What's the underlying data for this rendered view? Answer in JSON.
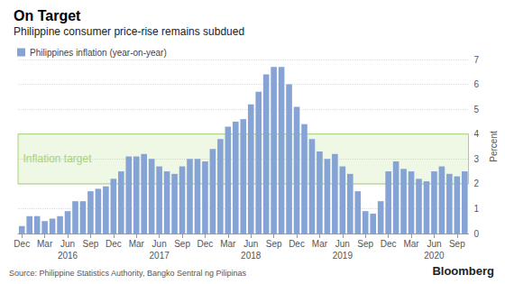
{
  "chart_data": {
    "type": "bar",
    "title": "On Target",
    "subtitle": "Philippine consumer price-rise remains subdued",
    "source": "Source: Philippine Statistics Authority, Bangko Sentral ng Pilipinas",
    "brand": "Bloomberg",
    "y_label": "Percent",
    "categories": [
      "Dec",
      null,
      null,
      "Mar",
      null,
      null,
      "Jun\n2016",
      null,
      null,
      "Sep",
      null,
      null,
      "Dec",
      null,
      null,
      "Mar",
      null,
      null,
      "Jun\n2017",
      null,
      null,
      "Sep",
      null,
      null,
      "Dec",
      null,
      null,
      "Mar",
      null,
      null,
      "Jun\n2018",
      null,
      null,
      "Sep",
      null,
      null,
      "Dec",
      null,
      null,
      "Mar",
      null,
      null,
      "Jun\n2019",
      null,
      null,
      "Sep",
      null,
      null,
      "Dec",
      null,
      null,
      "Mar",
      null,
      null,
      "Jun\n2020",
      null,
      null,
      "Sep",
      null
    ],
    "series": [
      {
        "name": "Philippines inflation (year-on-year)",
        "color": "#86a3d6",
        "values": [
          0.3,
          0.7,
          0.7,
          0.5,
          0.6,
          0.7,
          0.9,
          1.3,
          1.3,
          1.7,
          1.8,
          1.9,
          2.2,
          2.5,
          3.1,
          3.1,
          3.2,
          3.0,
          2.7,
          2.5,
          2.4,
          2.7,
          3.0,
          3.0,
          2.9,
          3.4,
          3.8,
          4.3,
          4.5,
          4.6,
          5.2,
          5.7,
          6.4,
          6.7,
          6.7,
          6.0,
          5.1,
          4.4,
          3.8,
          3.3,
          3.0,
          3.2,
          2.7,
          2.4,
          1.7,
          0.9,
          0.8,
          1.3,
          2.5,
          2.9,
          2.6,
          2.5,
          2.2,
          2.1,
          2.5,
          2.7,
          2.4,
          2.3,
          2.5
        ]
      }
    ],
    "target_band": {
      "label": "Inflation target",
      "range": [
        2,
        4
      ],
      "color": "#a8d46f"
    },
    "ylim": [
      0,
      7
    ],
    "yticks": [
      0,
      1,
      2,
      3,
      4,
      5,
      6,
      7
    ],
    "grid": true,
    "legend": "top-left"
  }
}
